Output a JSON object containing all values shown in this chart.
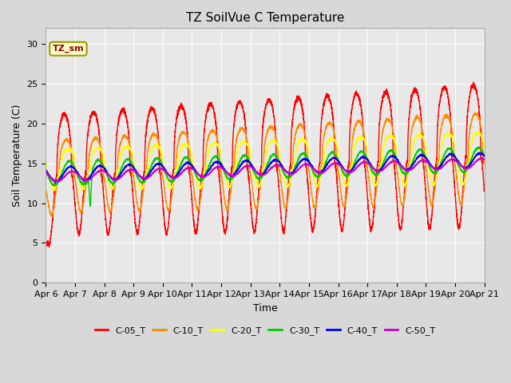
{
  "title": "TZ SoilVue C Temperature",
  "xlabel": "Time",
  "ylabel": "Soil Temperature (C)",
  "ylim": [
    0,
    32
  ],
  "yticks": [
    0,
    5,
    10,
    15,
    20,
    25,
    30
  ],
  "fig_bg_color": "#d8d8d8",
  "plot_bg_color": "#e8e8e8",
  "legend_label": "TZ_sm",
  "series_colors": {
    "C-05_T": "#ff0000",
    "C-10_T": "#ff8c00",
    "C-20_T": "#ffff00",
    "C-30_T": "#00cc00",
    "C-40_T": "#0000ff",
    "C-50_T": "#cc00cc"
  },
  "x_labels": [
    "Apr 6",
    "Apr 7",
    "Apr 8",
    "Apr 9",
    "Apr 10",
    "Apr 11",
    "Apr 12",
    "Apr 13",
    "Apr 14",
    "Apr 15",
    "Apr 16",
    "Apr 17",
    "Apr 18",
    "Apr 19",
    "Apr 20",
    "Apr 21"
  ]
}
